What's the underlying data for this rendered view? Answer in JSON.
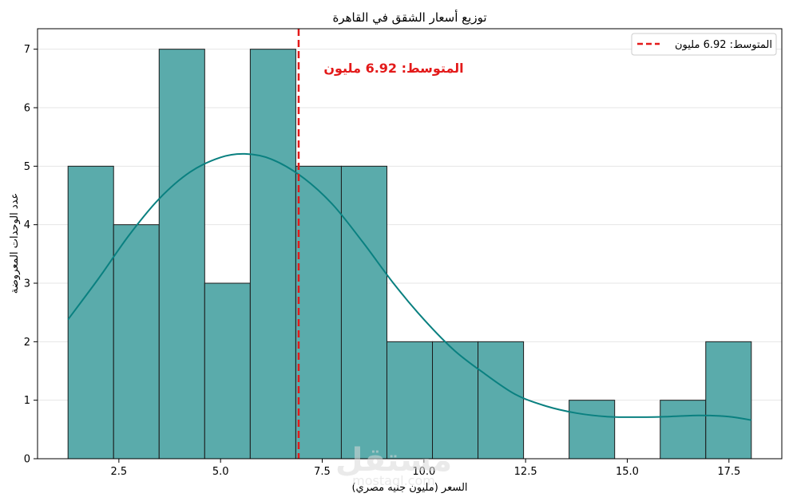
{
  "chart_data": {
    "type": "bar",
    "subtype": "histogram-with-kde",
    "title": "توزيع أسعار الشقق في القاهرة",
    "xlabel": "السعر (مليون جنيه مصري)",
    "ylabel": "عدد الوحدات المعروضة",
    "xlim": [
      0.5,
      18.8
    ],
    "ylim": [
      0,
      7.35
    ],
    "x_ticks": [
      2.5,
      5.0,
      7.5,
      10.0,
      12.5,
      15.0,
      17.5
    ],
    "x_tick_labels": [
      "2.5",
      "5.0",
      "7.5",
      "10.0",
      "12.5",
      "15.0",
      "17.5"
    ],
    "y_ticks": [
      0,
      1,
      2,
      3,
      4,
      5,
      6,
      7
    ],
    "y_tick_labels": [
      "0",
      "1",
      "2",
      "3",
      "4",
      "5",
      "6",
      "7"
    ],
    "grid": "horizontal",
    "bin_edges": [
      1.25,
      2.37,
      3.49,
      4.61,
      5.73,
      6.85,
      7.97,
      9.09,
      10.21,
      11.33,
      12.45,
      13.57,
      14.69,
      15.81,
      16.93,
      18.05
    ],
    "values": [
      5,
      4,
      7,
      3,
      7,
      5,
      5,
      2,
      2,
      2,
      0,
      1,
      0,
      1,
      2
    ],
    "bar_color": "#5aabab",
    "bar_edge_color": "#1a1a1a",
    "kde": {
      "color": "#0a8080",
      "x": [
        1.25,
        2.0,
        2.75,
        3.5,
        4.25,
        5.0,
        5.6,
        6.25,
        7.0,
        7.75,
        8.5,
        9.25,
        10.0,
        10.75,
        11.5,
        12.25,
        13.0,
        13.75,
        14.5,
        15.25,
        16.0,
        16.75,
        17.5,
        18.05
      ],
      "y": [
        2.38,
        3.08,
        3.82,
        4.45,
        4.9,
        5.15,
        5.21,
        5.12,
        4.82,
        4.35,
        3.7,
        3.0,
        2.38,
        1.85,
        1.45,
        1.1,
        0.9,
        0.78,
        0.72,
        0.71,
        0.72,
        0.74,
        0.72,
        0.66
      ]
    },
    "mean": {
      "value": 6.92,
      "color": "#e31a1a",
      "annotation": "المتوسط: 6.92 مليون",
      "legend_label": "المتوسط: 6.92 مليون",
      "legend_position": "top-right"
    }
  },
  "watermark": {
    "main": "مستقل",
    "sub": "mostaql.com"
  }
}
